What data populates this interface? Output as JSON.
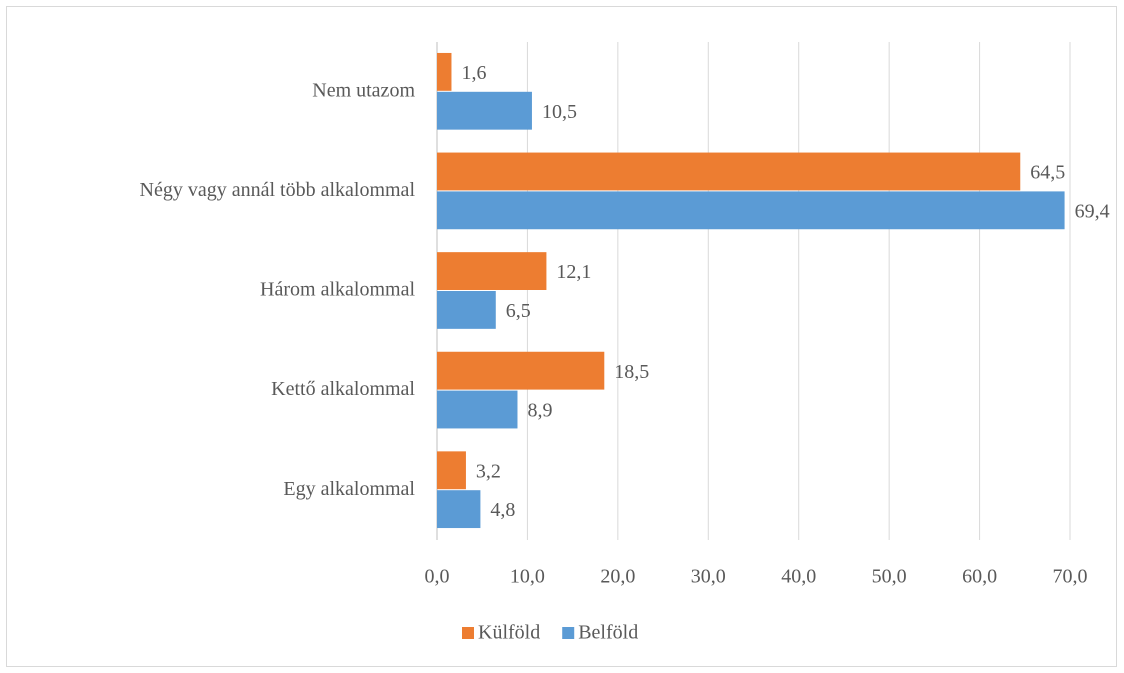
{
  "chart_data": {
    "type": "bar",
    "orientation": "horizontal",
    "categories": [
      "Nem utazom",
      "Négy vagy annál több alkalommal",
      "Három alkalommal",
      "Kettő alkalommal",
      "Egy alkalommal"
    ],
    "series": [
      {
        "name": "Külföld",
        "color": "#ED7D31",
        "values": [
          1.6,
          64.5,
          12.1,
          18.5,
          3.2
        ],
        "value_labels": [
          "1,6",
          "64,5",
          "12,1",
          "18,5",
          "3,2"
        ]
      },
      {
        "name": "Belföld",
        "color": "#5B9BD5",
        "values": [
          10.5,
          69.4,
          6.5,
          8.9,
          4.8
        ],
        "value_labels": [
          "10,5",
          "69,4",
          "6,5",
          "8,9",
          "4,8"
        ]
      }
    ],
    "xlim": [
      0,
      70
    ],
    "xticks": [
      {
        "value": 0,
        "label": "0,0"
      },
      {
        "value": 10,
        "label": "10,0"
      },
      {
        "value": 20,
        "label": "20,0"
      },
      {
        "value": 30,
        "label": "30,0"
      },
      {
        "value": 40,
        "label": "40,0"
      },
      {
        "value": 50,
        "label": "50,0"
      },
      {
        "value": 60,
        "label": "60,0"
      },
      {
        "value": 70,
        "label": "70,0"
      }
    ],
    "grid": true,
    "legend": "bottom"
  }
}
